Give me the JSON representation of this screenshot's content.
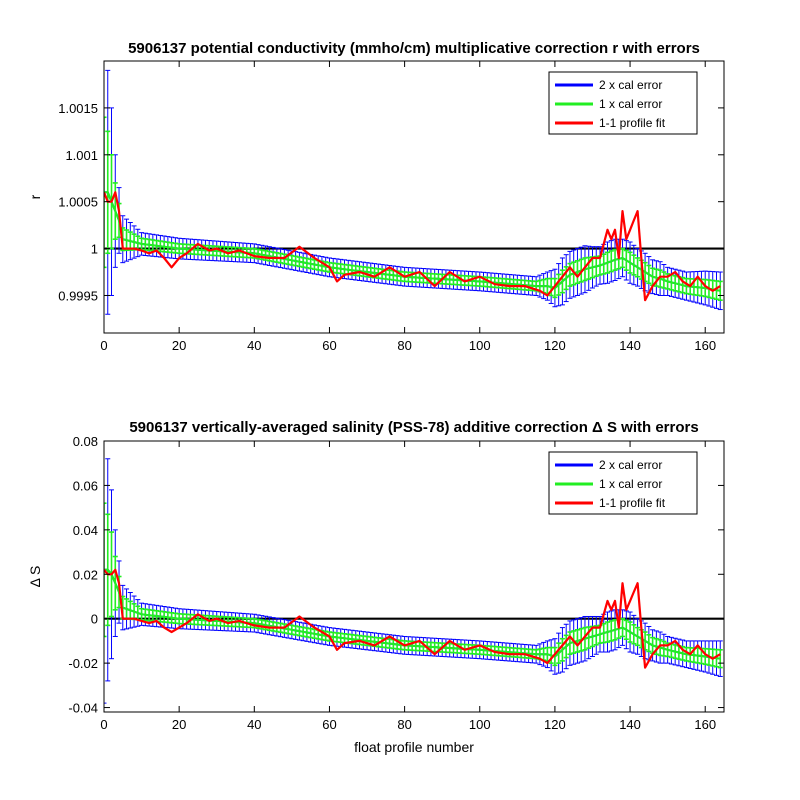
{
  "figure": {
    "xlabel": "float profile number"
  },
  "chart_data": [
    {
      "type": "line",
      "title": "5906137 potential conductivity (mmho/cm) multiplicative correction r with errors",
      "ylabel": "r",
      "xlim": [
        0,
        165
      ],
      "ylim": [
        0.9991,
        1.002
      ],
      "xticks": [
        0,
        20,
        40,
        60,
        80,
        100,
        120,
        140,
        160
      ],
      "xtick_labels": [
        "0",
        "20",
        "40",
        "60",
        "80",
        "100",
        "120",
        "140",
        "160"
      ],
      "yticks": [
        0.9995,
        1.0,
        1.0005,
        1.001,
        1.0015
      ],
      "ytick_labels": [
        "0.9995",
        "1",
        "1.0005",
        "1.001",
        "1.0015"
      ],
      "reference_line": 1.0,
      "legend_position": "top-right",
      "legend": [
        "2 x cal error",
        "1 x cal error",
        "1-1 profile fit"
      ],
      "series": [
        {
          "name": "2 x cal error",
          "color": "#0000ff",
          "x": [
            0,
            1,
            2,
            3,
            4,
            5,
            10,
            20,
            40,
            60,
            80,
            100,
            115,
            118,
            120,
            122,
            124,
            126,
            128,
            130,
            132,
            134,
            136,
            138,
            140,
            142,
            144,
            146,
            148,
            150,
            155,
            160,
            164
          ],
          "y": [
            1.0006,
            1.0006,
            1.0005,
            1.0004,
            1.0003,
            1.0001,
            1.00005,
            1.0,
            0.99995,
            0.9998,
            0.9997,
            0.99965,
            0.9996,
            0.9996,
            0.99958,
            0.99965,
            0.99972,
            0.99975,
            0.99978,
            0.9998,
            0.99982,
            0.99985,
            0.99988,
            0.9999,
            0.99985,
            0.9998,
            0.99975,
            0.9997,
            0.99968,
            0.99965,
            0.9996,
            0.99958,
            0.99955
          ],
          "err": [
            0.0016,
            0.0013,
            0.001,
            0.0006,
            0.00035,
            0.00025,
            0.00012,
            0.00011,
            0.0001,
            0.0001,
            0.0001,
            0.0001,
            0.0001,
            0.00015,
            0.0002,
            0.00025,
            0.00025,
            0.00025,
            0.00025,
            0.00022,
            0.0002,
            0.00022,
            0.00022,
            0.0002,
            0.00022,
            0.0002,
            0.0002,
            0.00018,
            0.00018,
            0.00015,
            0.00015,
            0.00018,
            0.0002
          ]
        },
        {
          "name": "1 x cal error",
          "color": "#22ee22",
          "x": [
            0,
            1,
            2,
            3,
            4,
            5,
            10,
            20,
            40,
            60,
            80,
            100,
            115,
            118,
            120,
            122,
            124,
            126,
            128,
            130,
            132,
            134,
            136,
            138,
            140,
            142,
            144,
            146,
            148,
            150,
            155,
            160,
            164
          ],
          "y": [
            1.0006,
            1.0006,
            1.0005,
            1.0004,
            1.0003,
            1.0001,
            1.00005,
            1.0,
            0.99995,
            0.9998,
            0.9997,
            0.99965,
            0.9996,
            0.9996,
            0.99958,
            0.99965,
            0.99972,
            0.99975,
            0.99978,
            0.9998,
            0.99982,
            0.99985,
            0.99988,
            0.9999,
            0.99985,
            0.9998,
            0.99975,
            0.9997,
            0.99968,
            0.99965,
            0.9996,
            0.99958,
            0.99955
          ],
          "err": [
            0.0008,
            0.00065,
            0.0005,
            0.0003,
            0.00018,
            0.00012,
            6e-05,
            5e-05,
            5e-05,
            5e-05,
            5e-05,
            5e-05,
            5e-05,
            8e-05,
            0.0001,
            0.00012,
            0.00012,
            0.00012,
            0.00012,
            0.00011,
            0.0001,
            0.00011,
            0.00011,
            0.0001,
            0.00011,
            0.0001,
            0.0001,
            9e-05,
            9e-05,
            8e-05,
            8e-05,
            9e-05,
            0.0001
          ]
        },
        {
          "name": "1-1 profile fit",
          "color": "#ff0000",
          "x": [
            0,
            1,
            2,
            3,
            4,
            5,
            6,
            8,
            10,
            12,
            14,
            16,
            18,
            20,
            22,
            25,
            28,
            30,
            33,
            36,
            40,
            44,
            48,
            52,
            56,
            60,
            62,
            64,
            68,
            72,
            76,
            80,
            84,
            88,
            92,
            96,
            100,
            104,
            108,
            112,
            116,
            118,
            120,
            122,
            124,
            126,
            128,
            130,
            132,
            134,
            135,
            136,
            137,
            138,
            139,
            140,
            141,
            142,
            143,
            144,
            146,
            148,
            150,
            152,
            154,
            156,
            158,
            160,
            162,
            164
          ],
          "y": [
            1.0006,
            1.0005,
            1.0005,
            1.0006,
            1.0004,
            1.0,
            1.0,
            1.0,
            0.99998,
            0.99995,
            0.99998,
            0.9999,
            0.9998,
            0.9999,
            0.99995,
            1.00005,
            0.99998,
            1.0,
            0.99995,
            0.99998,
            0.99992,
            0.9999,
            0.9999,
            1.00002,
            0.9999,
            0.9998,
            0.99965,
            0.99972,
            0.99975,
            0.9997,
            0.9998,
            0.9997,
            0.99975,
            0.9996,
            0.99975,
            0.99965,
            0.9997,
            0.99962,
            0.9996,
            0.9996,
            0.99955,
            0.9995,
            0.9996,
            0.9997,
            0.9998,
            0.9997,
            0.9998,
            0.9999,
            0.9999,
            1.0002,
            1.0001,
            1.0002,
            0.9999,
            1.0004,
            1.0001,
            1.0002,
            1.0003,
            1.0004,
            0.9999,
            0.99945,
            0.9996,
            0.9997,
            0.9997,
            0.99975,
            0.99965,
            0.9996,
            0.9997,
            0.9996,
            0.99955,
            0.9996
          ]
        }
      ]
    },
    {
      "type": "line",
      "title": "5906137 vertically-averaged salinity (PSS-78) additive correction Δ S with errors",
      "ylabel": "Δ S",
      "xlabel": "float profile number",
      "xlim": [
        0,
        165
      ],
      "ylim": [
        -0.042,
        0.08
      ],
      "xticks": [
        0,
        20,
        40,
        60,
        80,
        100,
        120,
        140,
        160
      ],
      "xtick_labels": [
        "0",
        "20",
        "40",
        "60",
        "80",
        "100",
        "120",
        "140",
        "160"
      ],
      "yticks": [
        -0.04,
        -0.02,
        0,
        0.02,
        0.04,
        0.06,
        0.08
      ],
      "ytick_labels": [
        "-0.04",
        "-0.02",
        "0",
        "0.02",
        "0.04",
        "0.06",
        "0.08"
      ],
      "reference_line": 0,
      "legend_position": "top-right",
      "legend": [
        "2 x cal error",
        "1 x cal error",
        "1-1 profile fit"
      ],
      "series": [
        {
          "name": "2 x cal error",
          "color": "#0000ff",
          "x": [
            0,
            1,
            2,
            3,
            4,
            5,
            10,
            20,
            40,
            60,
            80,
            100,
            115,
            118,
            120,
            122,
            124,
            126,
            128,
            130,
            132,
            134,
            136,
            138,
            140,
            142,
            144,
            146,
            148,
            150,
            155,
            160,
            164
          ],
          "y": [
            0.022,
            0.022,
            0.02,
            0.016,
            0.012,
            0.005,
            0.002,
            0.0,
            -0.002,
            -0.008,
            -0.012,
            -0.014,
            -0.016,
            -0.016,
            -0.017,
            -0.014,
            -0.011,
            -0.01,
            -0.009,
            -0.008,
            -0.007,
            -0.006,
            -0.005,
            -0.004,
            -0.006,
            -0.008,
            -0.01,
            -0.012,
            -0.013,
            -0.014,
            -0.016,
            -0.017,
            -0.018
          ],
          "err": [
            0.06,
            0.05,
            0.038,
            0.024,
            0.014,
            0.01,
            0.005,
            0.0045,
            0.004,
            0.004,
            0.004,
            0.004,
            0.004,
            0.006,
            0.008,
            0.01,
            0.01,
            0.01,
            0.01,
            0.009,
            0.008,
            0.009,
            0.009,
            0.008,
            0.009,
            0.008,
            0.008,
            0.007,
            0.007,
            0.006,
            0.006,
            0.007,
            0.008
          ]
        },
        {
          "name": "1 x cal error",
          "color": "#22ee22",
          "x": [
            0,
            1,
            2,
            3,
            4,
            5,
            10,
            20,
            40,
            60,
            80,
            100,
            115,
            118,
            120,
            122,
            124,
            126,
            128,
            130,
            132,
            134,
            136,
            138,
            140,
            142,
            144,
            146,
            148,
            150,
            155,
            160,
            164
          ],
          "y": [
            0.022,
            0.022,
            0.02,
            0.016,
            0.012,
            0.005,
            0.002,
            0.0,
            -0.002,
            -0.008,
            -0.012,
            -0.014,
            -0.016,
            -0.016,
            -0.017,
            -0.014,
            -0.011,
            -0.01,
            -0.009,
            -0.008,
            -0.007,
            -0.006,
            -0.005,
            -0.004,
            -0.006,
            -0.008,
            -0.01,
            -0.012,
            -0.013,
            -0.014,
            -0.016,
            -0.017,
            -0.018
          ],
          "err": [
            0.03,
            0.025,
            0.019,
            0.012,
            0.007,
            0.005,
            0.0025,
            0.0022,
            0.002,
            0.002,
            0.002,
            0.002,
            0.002,
            0.003,
            0.004,
            0.005,
            0.005,
            0.005,
            0.005,
            0.0045,
            0.004,
            0.0045,
            0.0045,
            0.004,
            0.0045,
            0.004,
            0.004,
            0.0035,
            0.0035,
            0.003,
            0.003,
            0.0035,
            0.004
          ]
        },
        {
          "name": "1-1 profile fit",
          "color": "#ff0000",
          "x": [
            0,
            1,
            2,
            3,
            4,
            5,
            6,
            8,
            10,
            12,
            14,
            16,
            18,
            20,
            22,
            25,
            28,
            30,
            33,
            36,
            40,
            44,
            48,
            52,
            56,
            60,
            62,
            64,
            68,
            72,
            76,
            80,
            84,
            88,
            92,
            96,
            100,
            104,
            108,
            112,
            116,
            118,
            120,
            122,
            124,
            126,
            128,
            130,
            132,
            134,
            135,
            136,
            137,
            138,
            139,
            140,
            141,
            142,
            143,
            144,
            146,
            148,
            150,
            152,
            154,
            156,
            158,
            160,
            162,
            164
          ],
          "y": [
            0.022,
            0.02,
            0.02,
            0.022,
            0.016,
            0.0,
            0.0,
            0.0,
            -0.001,
            -0.002,
            -0.001,
            -0.004,
            -0.006,
            -0.004,
            -0.002,
            0.002,
            -0.001,
            0.0,
            -0.002,
            -0.001,
            -0.003,
            -0.004,
            -0.004,
            0.001,
            -0.004,
            -0.008,
            -0.014,
            -0.011,
            -0.01,
            -0.012,
            -0.008,
            -0.012,
            -0.01,
            -0.016,
            -0.01,
            -0.014,
            -0.012,
            -0.015,
            -0.016,
            -0.016,
            -0.018,
            -0.02,
            -0.016,
            -0.012,
            -0.008,
            -0.012,
            -0.008,
            -0.004,
            -0.004,
            0.008,
            0.004,
            0.008,
            -0.004,
            0.016,
            0.004,
            0.008,
            0.012,
            0.016,
            -0.004,
            -0.022,
            -0.016,
            -0.012,
            -0.012,
            -0.01,
            -0.014,
            -0.016,
            -0.012,
            -0.016,
            -0.018,
            -0.016
          ]
        }
      ]
    }
  ]
}
